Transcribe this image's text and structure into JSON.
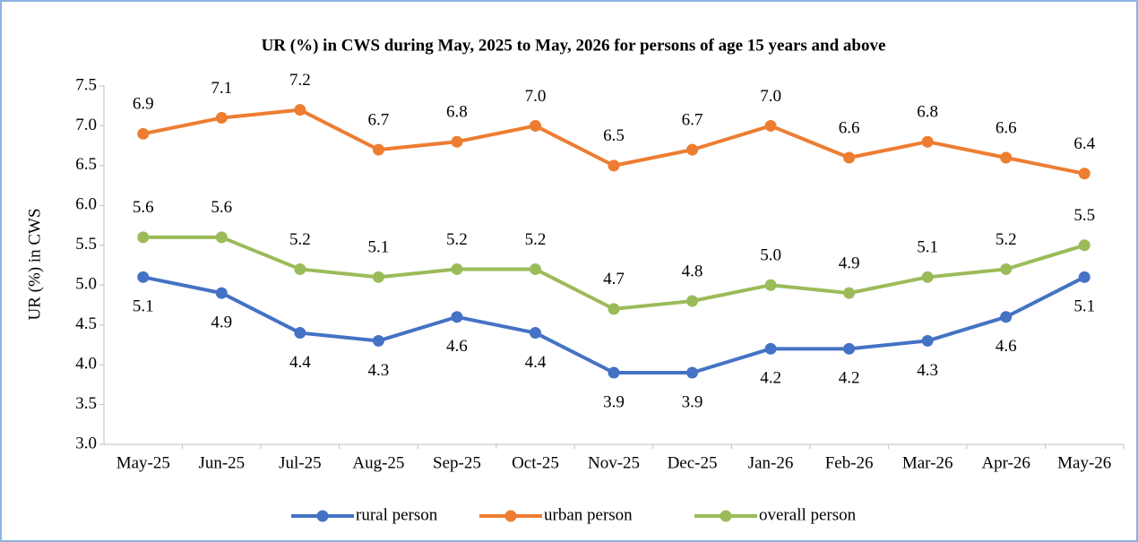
{
  "chart_data": {
    "type": "line",
    "title": "UR (%) in CWS during May, 2025 to May, 2026 for persons of age 15 years and above",
    "y_label": "UR (%) in CWS",
    "categories": [
      "May-25",
      "Jun-25",
      "Jul-25",
      "Aug-25",
      "Sep-25",
      "Oct-25",
      "Nov-25",
      "Dec-25",
      "Jan-26",
      "Feb-26",
      "Mar-26",
      "Apr-26",
      "May-26"
    ],
    "series": [
      {
        "name": "rural person",
        "color": "#4472c4",
        "values": [
          5.1,
          4.9,
          4.4,
          4.3,
          4.6,
          4.4,
          3.9,
          3.9,
          4.2,
          4.2,
          4.3,
          4.6,
          5.1
        ],
        "value_labels": [
          "5.1",
          "4.9",
          "4.4",
          "4.3",
          "4.6",
          "4.4",
          "3.9",
          "3.9",
          "4.2",
          "4.2",
          "4.3",
          "4.6",
          "5.1"
        ]
      },
      {
        "name": "urban person",
        "color": "#ed7d31",
        "values": [
          6.9,
          7.1,
          7.2,
          6.7,
          6.8,
          7,
          6.5,
          6.7,
          7,
          6.6,
          6.8,
          6.6,
          6.4
        ],
        "value_labels": [
          "6.9",
          "7.1",
          "7.2",
          "6.7",
          "6.8",
          "7.0",
          "6.5",
          "6.7",
          "7.0",
          "6.6",
          "6.8",
          "6.6",
          "6.4"
        ]
      },
      {
        "name": "overall person",
        "color": "#9bbb59",
        "values": [
          5.6,
          5.6,
          5.2,
          5.1,
          5.2,
          5.2,
          4.7,
          4.8,
          5,
          4.9,
          5.1,
          5.2,
          5.5
        ],
        "value_labels": [
          "5.6",
          "5.6",
          "5.2",
          "5.1",
          "5.2",
          "5.2",
          "4.7",
          "4.8",
          "5.0",
          "4.9",
          "5.1",
          "5.2",
          "5.5"
        ]
      }
    ],
    "ylim": [
      3,
      7.5
    ],
    "yticks": [
      {
        "value": 3,
        "label": "3.0"
      },
      3.5,
      {
        "value": 4,
        "label": "4.0"
      },
      4.5,
      {
        "value": 5,
        "label": "5.0"
      },
      5.5,
      {
        "value": 6,
        "label": "6.0"
      },
      6.5,
      {
        "value": 7,
        "label": "7.0"
      },
      7.5
    ],
    "grid": false,
    "legend": "bottom"
  }
}
